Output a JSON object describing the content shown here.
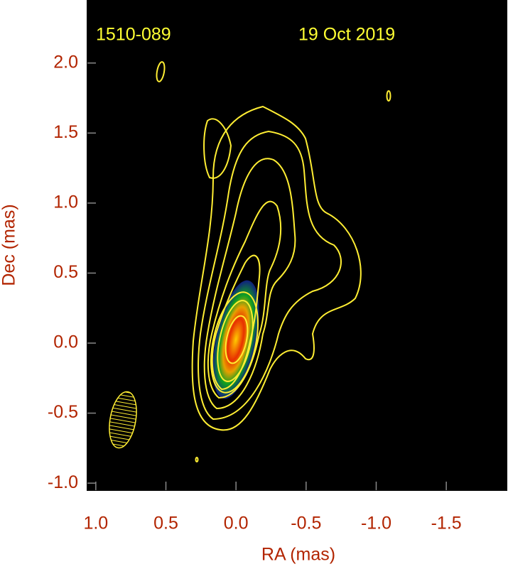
{
  "chart_data": {
    "type": "contour-map",
    "annotations": [
      "1510-089",
      "19 Oct 2019"
    ],
    "x_label": "RA (mas)",
    "y_label": "Dec (mas)",
    "xlim": [
      1.06,
      -1.93
    ],
    "ylim": [
      -1.05,
      2.45
    ],
    "xticks": [
      {
        "value": 1.0,
        "label": "1.0"
      },
      0.5,
      {
        "value": 0.0,
        "label": "0.0"
      },
      -0.5,
      {
        "value": -1.0,
        "label": "-1.0"
      },
      -1.5
    ],
    "yticks": [
      {
        "value": 2.0,
        "label": "2.0"
      },
      1.5,
      {
        "value": 1.0,
        "label": "1.0"
      },
      0.5,
      {
        "value": 0.0,
        "label": "0.0"
      },
      -0.5,
      {
        "value": -1.0,
        "label": "-1.0"
      }
    ],
    "tick_color": "#b22400",
    "annotation_color": "#ffff33",
    "background": "#000000"
  }
}
